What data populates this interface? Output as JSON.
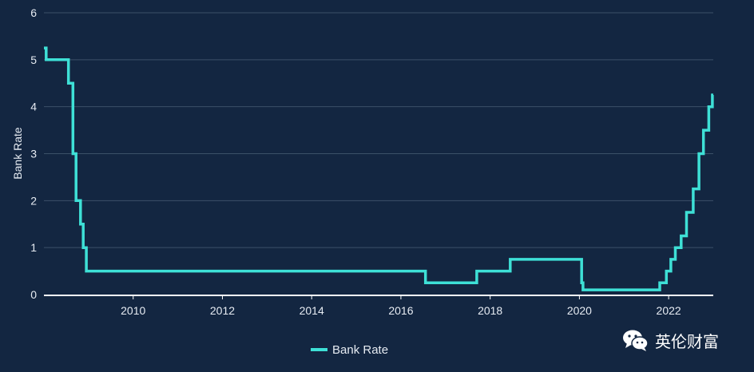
{
  "chart_data": {
    "type": "line",
    "xlabel": "",
    "ylabel": "Bank Rate",
    "xlim": [
      2008.0,
      2023.0
    ],
    "ylim": [
      0,
      6
    ],
    "x_ticks": [
      "2010",
      "2012",
      "2014",
      "2016",
      "2018",
      "2020",
      "2022"
    ],
    "y_ticks": [
      "0",
      "1",
      "2",
      "3",
      "4",
      "5",
      "6"
    ],
    "grid": "horizontal",
    "legend_position": "bottom-center",
    "series": [
      {
        "name": "Bank Rate",
        "color": "#3ee0d6",
        "step": true,
        "points": [
          {
            "x": 2008.0,
            "y": 5.25
          },
          {
            "x": 2008.05,
            "y": 5.0
          },
          {
            "x": 2008.55,
            "y": 4.5
          },
          {
            "x": 2008.65,
            "y": 3.0
          },
          {
            "x": 2008.72,
            "y": 2.0
          },
          {
            "x": 2008.82,
            "y": 1.5
          },
          {
            "x": 2008.88,
            "y": 1.0
          },
          {
            "x": 2008.95,
            "y": 0.5
          },
          {
            "x": 2016.55,
            "y": 0.25
          },
          {
            "x": 2017.7,
            "y": 0.5
          },
          {
            "x": 2018.45,
            "y": 0.75
          },
          {
            "x": 2020.05,
            "y": 0.25
          },
          {
            "x": 2020.08,
            "y": 0.1
          },
          {
            "x": 2021.8,
            "y": 0.25
          },
          {
            "x": 2021.95,
            "y": 0.5
          },
          {
            "x": 2022.05,
            "y": 0.75
          },
          {
            "x": 2022.15,
            "y": 1.0
          },
          {
            "x": 2022.28,
            "y": 1.25
          },
          {
            "x": 2022.4,
            "y": 1.75
          },
          {
            "x": 2022.55,
            "y": 2.25
          },
          {
            "x": 2022.68,
            "y": 3.0
          },
          {
            "x": 2022.78,
            "y": 3.5
          },
          {
            "x": 2022.9,
            "y": 4.0
          },
          {
            "x": 2022.98,
            "y": 4.25
          }
        ]
      }
    ]
  },
  "watermark": {
    "text": "英伦财富",
    "icon": "wechat-icon"
  },
  "colors": {
    "background": "#132641",
    "line": "#3ee0d6",
    "grid": "#3b5068",
    "text": "#e6ebf2"
  }
}
